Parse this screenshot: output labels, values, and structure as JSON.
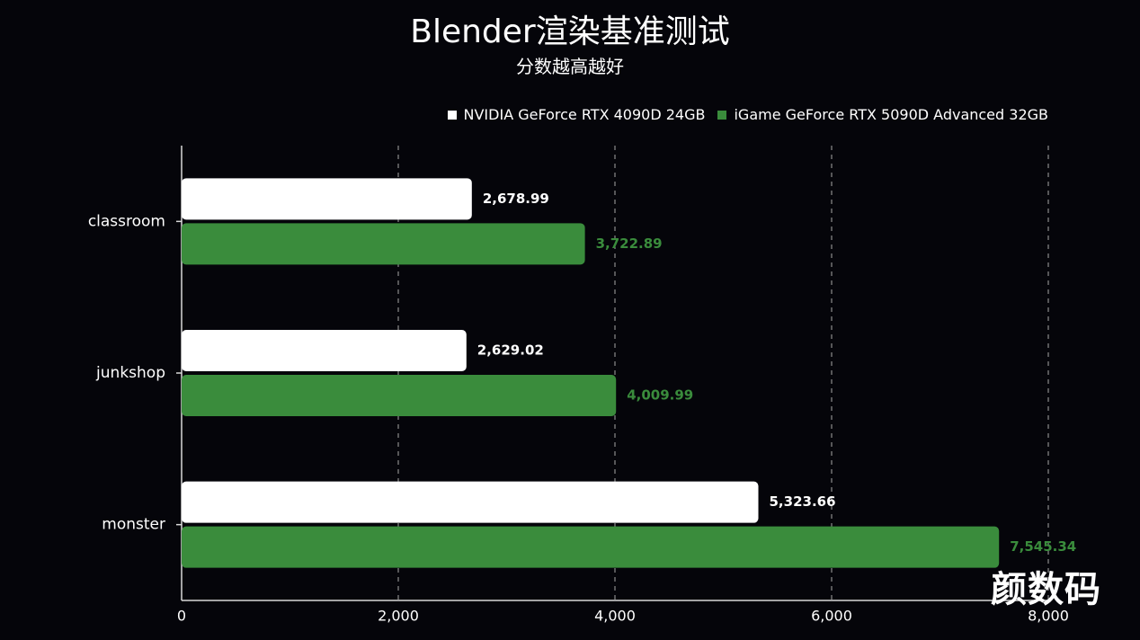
{
  "chart_data": {
    "type": "bar",
    "orientation": "horizontal",
    "title": "Blender渲染基准测试",
    "subtitle": "分数越高越好",
    "categories": [
      "classroom",
      "junkshop",
      "monster"
    ],
    "series": [
      {
        "name": "NVIDIA GeForce RTX 4090D 24GB",
        "color": "#ffffff",
        "values": [
          2678.99,
          2629.02,
          5323.66
        ],
        "labels": [
          "2,678.99",
          "2,629.02",
          "5,323.66"
        ]
      },
      {
        "name": "iGame GeForce RTX 5090D Advanced 32GB",
        "color": "#3a8c3c",
        "values": [
          3722.89,
          4009.99,
          7545.34
        ],
        "labels": [
          "3,722.89",
          "4,009.99",
          "7,545.34"
        ]
      }
    ],
    "xlim": [
      0,
      8000
    ],
    "xticks": [
      0,
      2000,
      4000,
      6000,
      8000
    ],
    "xtick_labels": [
      "0",
      "2,000",
      "4,000",
      "6,000",
      "8,000"
    ],
    "grid": "vertical-dashed",
    "legend_position": "top-right"
  },
  "watermark": "颜数码",
  "colors": {
    "background": "#05050a",
    "series_white": "#ffffff",
    "series_green": "#3a8c3c"
  }
}
